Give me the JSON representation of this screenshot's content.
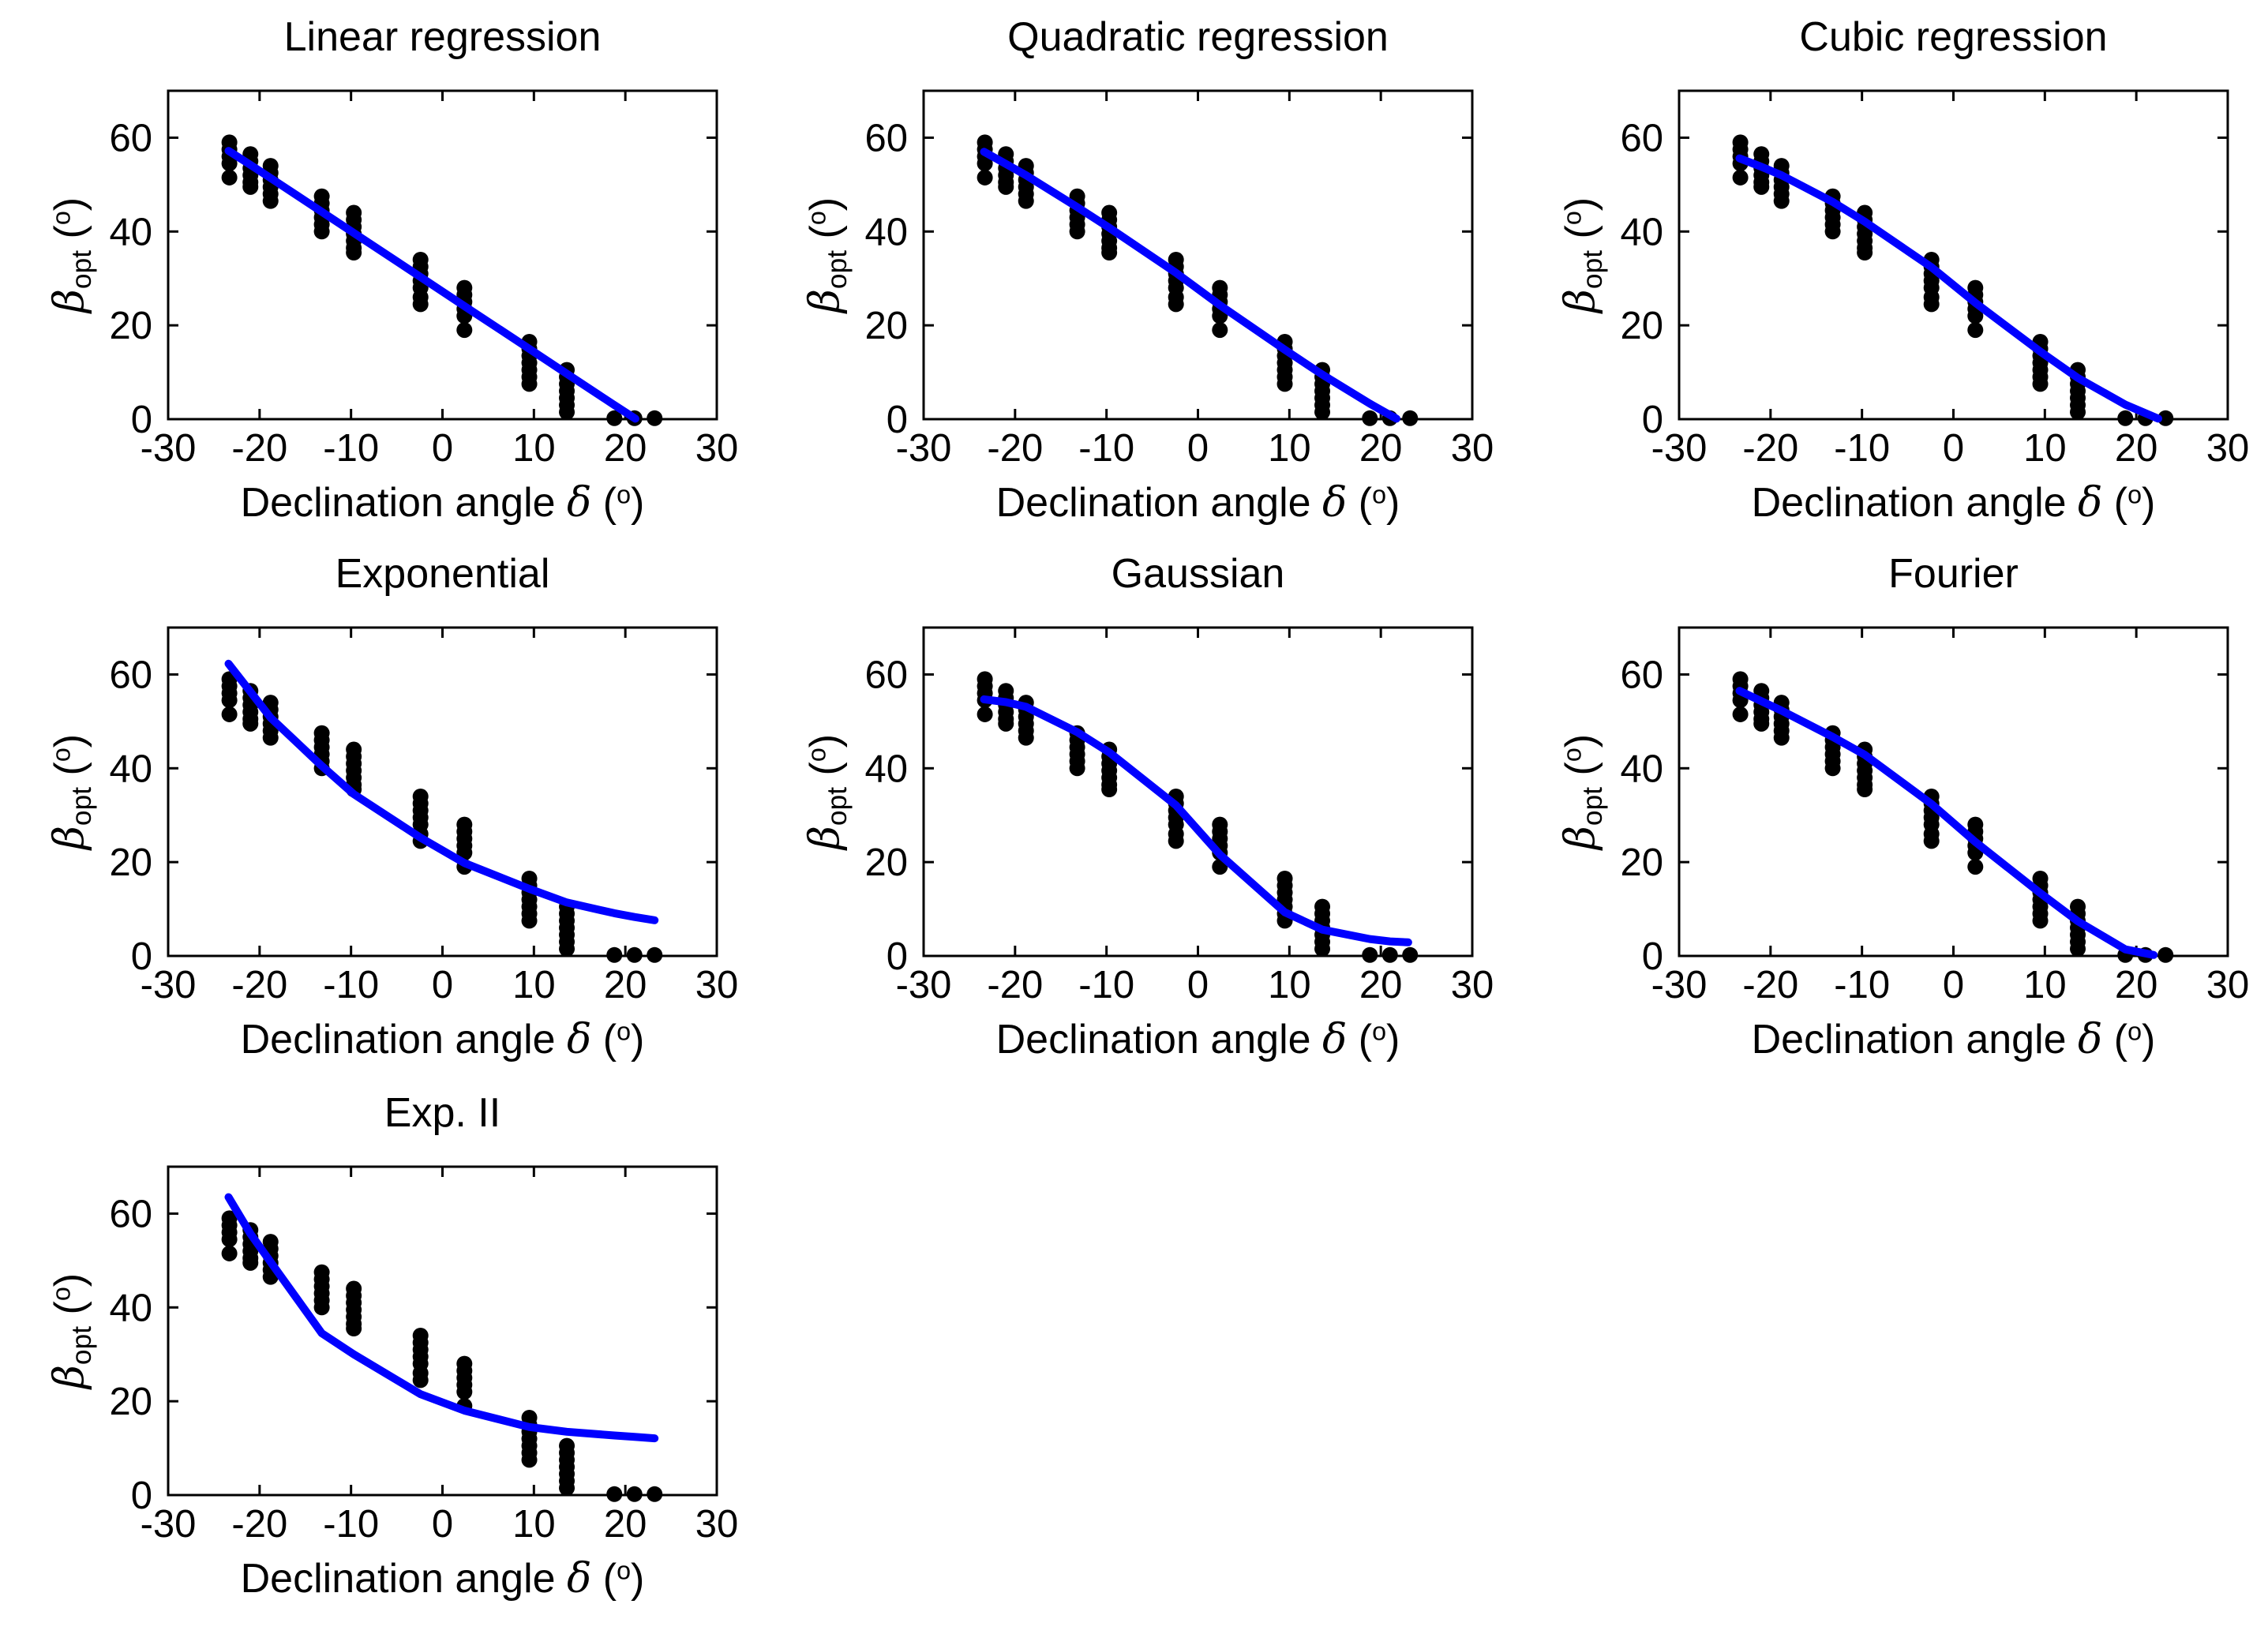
{
  "figure": {
    "background": "#ffffff",
    "colors": {
      "fit_line": "#0000ff",
      "data_points": "#000000",
      "axis": "#000000",
      "text": "#000000"
    }
  },
  "labels": {
    "xlabel": {
      "prefix": "Declination angle ",
      "symbol": "δ",
      "unit_open": " (",
      "unit_sup": "o",
      "unit_close": ")"
    },
    "ylabel": {
      "symbol": "β",
      "subscript": "opt",
      "unit_open": " (",
      "unit_sup": "o",
      "unit_close": ")"
    }
  },
  "chart_data": {
    "type": "scatter",
    "layout": "3-column grid, 7 subplots (rows 1-2 full, row 3 single left plot)",
    "xlabel": "Declination angle δ (°)",
    "ylabel": "β_opt (°)",
    "xlim": [
      -30,
      30
    ],
    "ylim": [
      0,
      70
    ],
    "x_ticks": [
      -30,
      -20,
      -10,
      0,
      10,
      20,
      30
    ],
    "y_ticks": [
      0,
      20,
      40,
      60
    ],
    "grid": false,
    "legend": "none",
    "scatter_clusters": [
      {
        "x": -23.3,
        "y": [
          59,
          57.5,
          56,
          54.5,
          51.5
        ]
      },
      {
        "x": -21.0,
        "y": [
          56.5,
          55,
          53.5,
          52,
          50.5,
          49.5
        ]
      },
      {
        "x": -18.8,
        "y": [
          54,
          52.5,
          51,
          49.5,
          48,
          46.5
        ]
      },
      {
        "x": -13.2,
        "y": [
          47.5,
          46,
          44.5,
          43,
          41.5,
          40
        ]
      },
      {
        "x": -9.7,
        "y": [
          44,
          42.5,
          41,
          39.5,
          38,
          36.5,
          35.5
        ]
      },
      {
        "x": -2.4,
        "y": [
          34,
          32.5,
          31,
          29.5,
          28,
          26,
          24.5
        ]
      },
      {
        "x": 2.4,
        "y": [
          28,
          26.5,
          25,
          23.5,
          22,
          19
        ]
      },
      {
        "x": 9.5,
        "y": [
          16.5,
          15,
          13.5,
          12,
          10.5,
          9,
          7.5
        ]
      },
      {
        "x": 13.6,
        "y": [
          10.5,
          9,
          7.5,
          6,
          4.5,
          3,
          1.5
        ]
      },
      {
        "x": 18.8,
        "y": [
          0.2
        ]
      },
      {
        "x": 21.0,
        "y": [
          0.2
        ]
      },
      {
        "x": 23.2,
        "y": [
          0.2
        ]
      }
    ],
    "subplots": [
      {
        "title": "Linear regression",
        "fit_curve": [
          [
            -23.4,
            57.2
          ],
          [
            -21,
            54.2
          ],
          [
            -18.8,
            51.4
          ],
          [
            -13.2,
            44.2
          ],
          [
            -9.7,
            39.7
          ],
          [
            -2.4,
            30.3
          ],
          [
            2.4,
            24.1
          ],
          [
            9.5,
            15.0
          ],
          [
            13.6,
            9.7
          ],
          [
            18.8,
            3.0
          ],
          [
            21.1,
            0.1
          ]
        ]
      },
      {
        "title": "Quadratic regression",
        "fit_curve": [
          [
            -23.4,
            57.0
          ],
          [
            -21,
            54.4
          ],
          [
            -18.8,
            52.0
          ],
          [
            -13.2,
            45.2
          ],
          [
            -9.7,
            40.8
          ],
          [
            -2.4,
            31.2
          ],
          [
            2.4,
            24.3
          ],
          [
            9.5,
            14.8
          ],
          [
            13.6,
            9.5
          ],
          [
            18.8,
            3.3
          ],
          [
            21.7,
            0.1
          ]
        ]
      },
      {
        "title": "Cubic regression",
        "fit_curve": [
          [
            -23.4,
            55.6
          ],
          [
            -21,
            53.8
          ],
          [
            -18.8,
            52.0
          ],
          [
            -13.2,
            46.3
          ],
          [
            -9.7,
            42.1
          ],
          [
            -2.4,
            32.4
          ],
          [
            2.4,
            24.8
          ],
          [
            9.5,
            14.4
          ],
          [
            13.6,
            8.8
          ],
          [
            18.8,
            3.1
          ],
          [
            22.4,
            0.1
          ]
        ]
      },
      {
        "title": "Exponential",
        "fit_curve": [
          [
            -23.4,
            62.3
          ],
          [
            -21,
            56.3
          ],
          [
            -18.8,
            50.8
          ],
          [
            -13.2,
            40.5
          ],
          [
            -9.7,
            34.5
          ],
          [
            -2.4,
            25.2
          ],
          [
            2.4,
            19.8
          ],
          [
            9.5,
            14.3
          ],
          [
            13.6,
            11.4
          ],
          [
            18.8,
            9.1
          ],
          [
            21,
            8.3
          ],
          [
            23.2,
            7.6
          ]
        ]
      },
      {
        "title": "Gaussian",
        "fit_curve": [
          [
            -23.4,
            54.7
          ],
          [
            -21,
            54.1
          ],
          [
            -18.8,
            53.1
          ],
          [
            -13.2,
            47.7
          ],
          [
            -9.7,
            43.4
          ],
          [
            -2.4,
            32.1
          ],
          [
            2.4,
            21.6
          ],
          [
            9.5,
            9.3
          ],
          [
            13.6,
            5.6
          ],
          [
            18.8,
            3.6
          ],
          [
            21,
            3.1
          ],
          [
            23,
            2.9
          ]
        ]
      },
      {
        "title": "Fourier",
        "fit_curve": [
          [
            -23.4,
            56.5
          ],
          [
            -21,
            54.3
          ],
          [
            -18.8,
            52.3
          ],
          [
            -13.2,
            46.7
          ],
          [
            -9.7,
            42.9
          ],
          [
            -2.4,
            32.4
          ],
          [
            2.4,
            24.3
          ],
          [
            9.5,
            13.4
          ],
          [
            13.6,
            7.4
          ],
          [
            18.8,
            1.4
          ],
          [
            21.9,
            0.2
          ]
        ]
      },
      {
        "title": "Exp. II",
        "fit_curve": [
          [
            -23.4,
            63.5
          ],
          [
            -21,
            55.7
          ],
          [
            -18.8,
            49.7
          ],
          [
            -13.2,
            34.5
          ],
          [
            -9.7,
            30.0
          ],
          [
            -2.4,
            21.5
          ],
          [
            2.4,
            18.0
          ],
          [
            9.5,
            14.5
          ],
          [
            13.6,
            13.5
          ],
          [
            18.8,
            12.7
          ],
          [
            21,
            12.4
          ],
          [
            23.2,
            12.1
          ]
        ]
      }
    ]
  }
}
